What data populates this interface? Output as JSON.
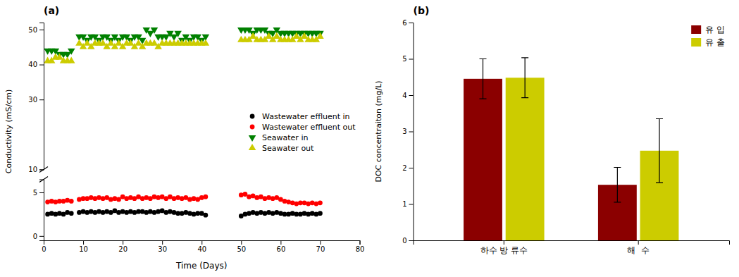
{
  "chart_data": [
    {
      "type": "scatter",
      "title": "(a)",
      "xlabel": "Time (Days)",
      "ylabel": "Conductivity (mS/cm)",
      "xlim": [
        0,
        80
      ],
      "xticks": [
        0,
        10,
        20,
        30,
        40,
        50,
        60,
        70,
        80
      ],
      "ylim": [
        -0.5,
        52
      ],
      "yticks": [
        0,
        5,
        10,
        30,
        40,
        50
      ],
      "ybreak": [
        6.5,
        10
      ],
      "grid": false,
      "legend": "right",
      "series": [
        {
          "name": "Wastewater effluent in",
          "color": "black",
          "marker": "circle",
          "x": [
            1,
            2,
            3,
            4,
            5,
            6,
            7,
            9,
            10,
            11,
            12,
            13,
            14,
            15,
            16,
            17,
            18,
            19,
            20,
            21,
            22,
            23,
            24,
            25,
            26,
            27,
            28,
            29,
            30,
            31,
            32,
            33,
            34,
            35,
            36,
            37,
            38,
            39,
            40,
            41,
            50,
            51,
            52,
            53,
            54,
            55,
            56,
            57,
            58,
            59,
            60,
            61,
            62,
            63,
            64,
            65,
            66,
            67,
            68,
            69,
            70
          ],
          "values": [
            2.5,
            2.6,
            2.5,
            2.6,
            2.5,
            2.7,
            2.6,
            2.7,
            2.8,
            2.7,
            2.8,
            2.7,
            2.8,
            2.7,
            2.8,
            2.7,
            2.9,
            2.7,
            2.8,
            2.7,
            2.8,
            2.7,
            2.8,
            2.8,
            2.7,
            2.8,
            2.7,
            2.8,
            2.9,
            2.7,
            2.8,
            2.7,
            2.6,
            2.6,
            2.7,
            2.6,
            2.5,
            2.6,
            2.6,
            2.4,
            2.3,
            2.5,
            2.6,
            2.7,
            2.6,
            2.7,
            2.6,
            2.7,
            2.6,
            2.7,
            2.6,
            2.5,
            2.5,
            2.6,
            2.5,
            2.5,
            2.6,
            2.5,
            2.6,
            2.5,
            2.6
          ]
        },
        {
          "name": "Wastewater effluent out",
          "color": "red",
          "marker": "circle",
          "x": [
            1,
            2,
            3,
            4,
            5,
            6,
            7,
            9,
            10,
            11,
            12,
            13,
            14,
            15,
            16,
            17,
            18,
            19,
            20,
            21,
            22,
            23,
            24,
            25,
            26,
            27,
            28,
            29,
            30,
            31,
            32,
            33,
            34,
            35,
            36,
            37,
            38,
            39,
            40,
            41,
            50,
            51,
            52,
            53,
            54,
            55,
            56,
            57,
            58,
            59,
            60,
            61,
            62,
            63,
            64,
            65,
            66,
            67,
            68,
            69,
            70
          ],
          "values": [
            3.9,
            4.0,
            3.9,
            4.0,
            4.0,
            4.1,
            4.0,
            4.2,
            4.3,
            4.3,
            4.4,
            4.3,
            4.4,
            4.3,
            4.4,
            4.2,
            4.3,
            4.2,
            4.5,
            4.3,
            4.4,
            4.3,
            4.5,
            4.3,
            4.4,
            4.3,
            4.5,
            4.4,
            4.5,
            4.3,
            4.5,
            4.3,
            4.4,
            4.3,
            4.4,
            4.2,
            4.3,
            4.2,
            4.4,
            4.5,
            4.7,
            4.8,
            4.5,
            4.6,
            4.4,
            4.5,
            4.3,
            4.4,
            4.3,
            4.4,
            4.2,
            4.0,
            3.9,
            3.8,
            3.7,
            3.8,
            3.8,
            3.7,
            3.8,
            3.7,
            3.8
          ]
        },
        {
          "name": "Seawater in",
          "color": "green",
          "marker": "triangle-down",
          "x": [
            1,
            2,
            3,
            4,
            5,
            6,
            7,
            9,
            10,
            11,
            12,
            13,
            14,
            15,
            16,
            17,
            18,
            19,
            20,
            21,
            22,
            23,
            24,
            25,
            26,
            27,
            28,
            29,
            30,
            31,
            32,
            33,
            34,
            35,
            36,
            37,
            38,
            39,
            40,
            41,
            50,
            51,
            52,
            53,
            54,
            55,
            56,
            57,
            58,
            59,
            60,
            61,
            62,
            63,
            64,
            65,
            66,
            67,
            68,
            69,
            70
          ],
          "values": [
            44,
            44,
            44,
            43,
            43,
            43,
            44,
            48,
            48,
            47,
            48,
            48,
            47,
            48,
            48,
            47,
            48,
            47,
            48,
            48,
            47,
            48,
            48,
            47,
            50,
            49,
            50,
            48,
            48,
            48,
            49,
            48,
            49,
            47,
            48,
            47,
            48,
            48,
            47,
            48,
            50,
            50,
            50,
            49,
            50,
            50,
            50,
            49,
            49,
            50,
            49,
            49,
            49,
            49,
            49,
            49,
            49,
            49,
            49,
            49,
            49
          ]
        },
        {
          "name": "Seawater out",
          "color": "#cccc00",
          "marker": "triangle-up",
          "x": [
            1,
            2,
            3,
            4,
            5,
            6,
            7,
            9,
            10,
            11,
            12,
            13,
            14,
            15,
            16,
            17,
            18,
            19,
            20,
            21,
            22,
            23,
            24,
            25,
            26,
            27,
            28,
            29,
            30,
            31,
            32,
            33,
            34,
            35,
            36,
            37,
            38,
            39,
            40,
            41,
            50,
            51,
            52,
            53,
            54,
            55,
            56,
            57,
            58,
            59,
            60,
            61,
            62,
            63,
            64,
            65,
            66,
            67,
            68,
            69,
            70
          ],
          "values": [
            41,
            41,
            42,
            42,
            41,
            41,
            41,
            46,
            45,
            46,
            45,
            46,
            46,
            46,
            45,
            46,
            45,
            46,
            45,
            46,
            46,
            45,
            46,
            45,
            46,
            46,
            46,
            45,
            46,
            46,
            46,
            46,
            46,
            46,
            46,
            46,
            46,
            46,
            46,
            46,
            47,
            47,
            47,
            48,
            47,
            47,
            47,
            48,
            47,
            48,
            47,
            47,
            47,
            47,
            48,
            47,
            48,
            47,
            47,
            47,
            48
          ]
        }
      ]
    },
    {
      "type": "bar",
      "title": "(b)",
      "ylabel": "DOC concentraiton (mg/L)",
      "categories": [
        "하수 방 류수",
        "해  수"
      ],
      "ylim": [
        0,
        6
      ],
      "yticks": [
        0,
        1,
        2,
        3,
        4,
        5,
        6
      ],
      "grid": false,
      "legend": "upper right",
      "series": [
        {
          "name": "유 입",
          "color": "#8b0000",
          "values": [
            4.45,
            1.53
          ],
          "errors": [
            0.55,
            0.48
          ]
        },
        {
          "name": "유 출",
          "color": "#cccc00",
          "values": [
            4.48,
            2.47
          ],
          "errors": [
            0.55,
            0.88
          ]
        }
      ]
    }
  ]
}
